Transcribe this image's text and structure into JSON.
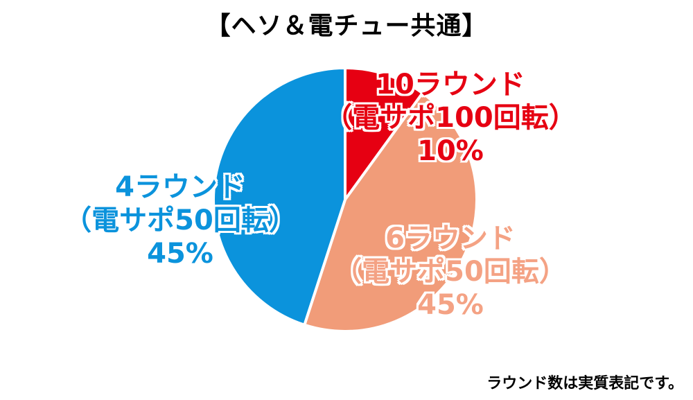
{
  "chart_data": {
    "type": "pie",
    "title": "【ヘソ＆電チュー共通】",
    "slices": [
      {
        "label_line1": "10ラウンド",
        "label_line2": "（電サポ100回転）",
        "label_pct": "10%",
        "value": 10,
        "color": "#e60012"
      },
      {
        "label_line1": "6ラウンド",
        "label_line2": "（電サポ50回転）",
        "label_pct": "45%",
        "value": 45,
        "color": "#f19c79"
      },
      {
        "label_line1": "4ラウンド",
        "label_line2": "（電サポ50回転）",
        "label_pct": "45%",
        "value": 45,
        "color": "#0b93dc"
      }
    ],
    "start_angle_deg": 0,
    "direction": "clockwise"
  },
  "footnote": "ラウンド数は実質表記です。"
}
